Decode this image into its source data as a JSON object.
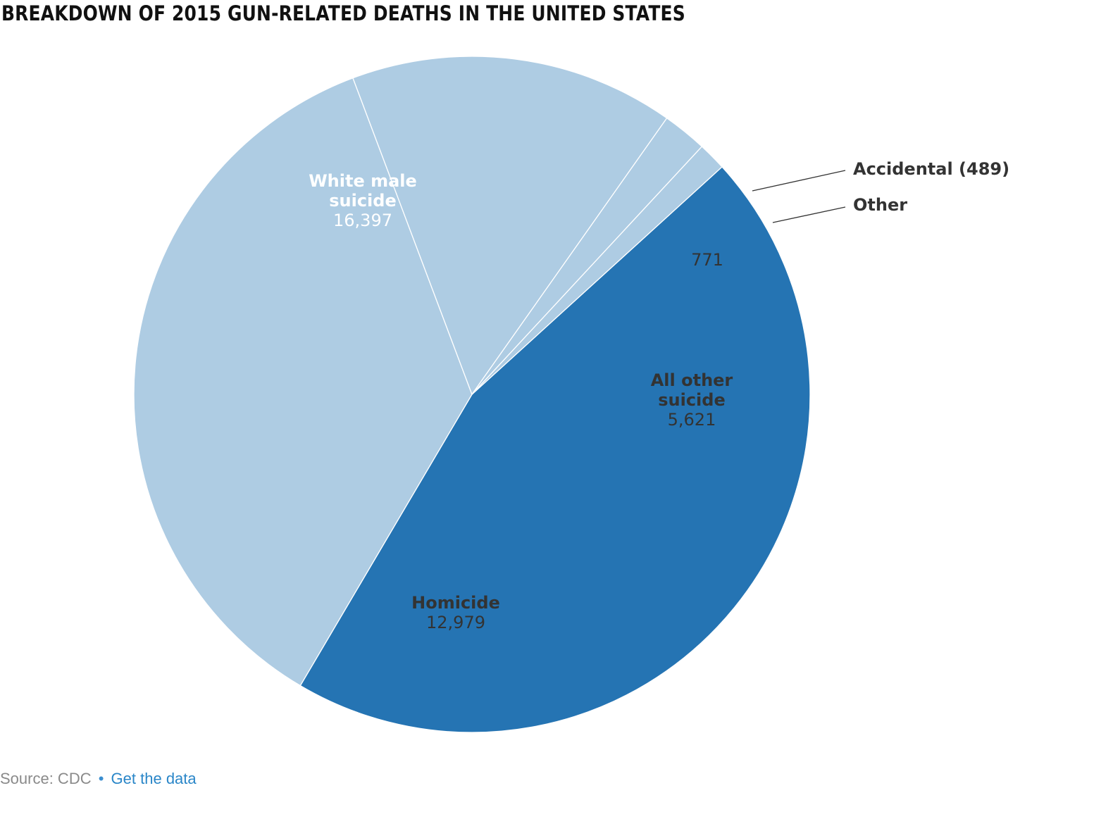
{
  "title": "BREAKDOWN OF 2015 GUN-RELATED DEATHS IN THE UNITED STATES",
  "colors": {
    "dark": "#2574b3",
    "light": "#aecce3",
    "text_dark_bg": "#ffffff",
    "text_light_bg": "#333333"
  },
  "chart_data": {
    "type": "pie",
    "title": "BREAKDOWN OF 2015 GUN-RELATED DEATHS IN THE UNITED STATES",
    "slices": [
      {
        "label": "White male suicide",
        "value": 16397,
        "value_text": "16,397",
        "color": "#2574b3"
      },
      {
        "label": "Homicide",
        "value": 12979,
        "value_text": "12,979",
        "color": "#aecce3"
      },
      {
        "label": "All other suicide",
        "value": 5621,
        "value_text": "5,621",
        "color": "#aecce3"
      },
      {
        "label": "Other",
        "value": 771,
        "value_text": "771",
        "color": "#aecce3"
      },
      {
        "label": "Accidental",
        "value": 489,
        "value_text": "Accidental (489)",
        "color": "#aecce3"
      }
    ]
  },
  "footer": {
    "source": "Source: CDC",
    "bullet": "•",
    "link": "Get the data"
  }
}
